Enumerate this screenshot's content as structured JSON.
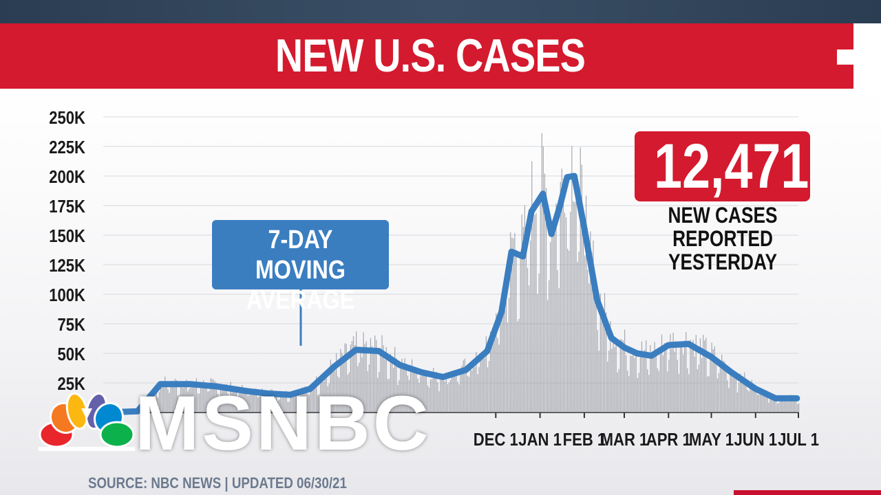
{
  "header": {
    "title": "NEW U.S. CASES"
  },
  "callout": {
    "line1": "7-DAY MOVING",
    "line2": "AVERAGE"
  },
  "stat": {
    "value": "12,471",
    "caption_line1": "NEW CASES REPORTED",
    "caption_line2": "YESTERDAY"
  },
  "source": "SOURCE: NBC NEWS | UPDATED 06/30/21",
  "logo": {
    "text": "MSNBC"
  },
  "colors": {
    "title_bg": "#d41a2e",
    "line": "#3a7ec0",
    "bars": "#8a8e96",
    "stat_bg": "#d41a2e"
  },
  "chart_data": {
    "type": "bar",
    "y_ticks": [
      "250K",
      "225K",
      "200K",
      "175K",
      "150K",
      "125K",
      "100K",
      "75K",
      "50K",
      "25K"
    ],
    "y_tick_values": [
      250000,
      225000,
      200000,
      175000,
      150000,
      125000,
      100000,
      75000,
      50000,
      25000
    ],
    "ylim": [
      0,
      250000
    ],
    "x_month_labels": [
      "DEC 1",
      "JAN 1",
      "FEB 1",
      "MAR 1",
      "APR 1",
      "MAY 1",
      "JUN 1",
      "JUL 1"
    ],
    "x_range": [
      "2020-03-01",
      "2021-07-01"
    ],
    "series": [
      {
        "name": "7-DAY MOVING AVERAGE",
        "type": "line",
        "x": [
          "2020-03-01",
          "2020-03-25",
          "2020-04-10",
          "2020-05-01",
          "2020-05-20",
          "2020-06-10",
          "2020-06-25",
          "2020-07-10",
          "2020-07-24",
          "2020-08-10",
          "2020-08-25",
          "2020-09-10",
          "2020-09-25",
          "2020-10-10",
          "2020-10-25",
          "2020-11-10",
          "2020-11-25",
          "2020-12-05",
          "2020-12-12",
          "2020-12-20",
          "2020-12-26",
          "2021-01-03",
          "2021-01-09",
          "2021-01-15",
          "2021-01-20",
          "2021-01-25",
          "2021-02-01",
          "2021-02-10",
          "2021-02-20",
          "2021-03-01",
          "2021-03-10",
          "2021-03-20",
          "2021-04-01",
          "2021-04-15",
          "2021-05-01",
          "2021-05-15",
          "2021-06-01",
          "2021-06-15",
          "2021-06-30"
        ],
        "y": [
          0,
          1000,
          24000,
          24000,
          22000,
          18000,
          16000,
          15000,
          20000,
          39000,
          53000,
          52000,
          40000,
          34000,
          30000,
          36000,
          52000,
          85000,
          136000,
          132000,
          170000,
          185000,
          151000,
          175000,
          199000,
          200000,
          156000,
          95000,
          63000,
          55000,
          50000,
          48000,
          57000,
          58000,
          47000,
          34000,
          20000,
          12000,
          12000
        ]
      },
      {
        "name": "",
        "type": "bar",
        "x_start": "2020-03-01",
        "x_end": "2021-07-01",
        "note": "daily reported cases, drawn as thin bars scattered around the moving average"
      }
    ]
  }
}
